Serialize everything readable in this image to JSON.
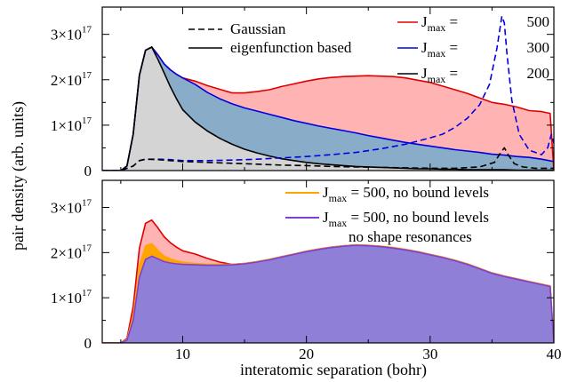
{
  "chart_data": [
    {
      "type": "area",
      "panel": "top",
      "xlabel": "interatomic separation (bohr)",
      "ylabel": "pair density (arb. units)",
      "xlim": [
        3.5,
        40
      ],
      "ylim": [
        0,
        3.6e+17
      ],
      "x_ticks": [
        10,
        20,
        30,
        40
      ],
      "y_ticks": [
        {
          "value": 0,
          "mantissa": "0",
          "exp": ""
        },
        {
          "value": 1e+17,
          "mantissa": "1×10",
          "exp": "17"
        },
        {
          "value": 2e+17,
          "mantissa": "2×10",
          "exp": "17"
        },
        {
          "value": 3e+17,
          "mantissa": "3×10",
          "exp": "17"
        }
      ],
      "legend_left": [
        {
          "label": "Gaussian",
          "style": "dashed",
          "color": "#000000"
        },
        {
          "label": "eigenfunction based",
          "style": "solid",
          "color": "#000000"
        }
      ],
      "legend_right": [
        {
          "sym": "J",
          "sub": "max",
          "eq": " = ",
          "num": "500",
          "color": "#e00000"
        },
        {
          "sym": "J",
          "sub": "max",
          "eq": " = ",
          "num": "300",
          "color": "#0000e0"
        },
        {
          "sym": "J",
          "sub": "max",
          "eq": " = ",
          "num": "200",
          "color": "#000000"
        }
      ],
      "series": [
        {
          "name": "J_max = 500",
          "line_color": "#e00000",
          "fill_color": "#ffb3b3",
          "style": "solid",
          "x": [
            3.5,
            5.0,
            5.5,
            6.0,
            6.5,
            7.0,
            7.5,
            8.0,
            8.5,
            9.0,
            9.5,
            10.0,
            11.0,
            12.0,
            13.0,
            14.0,
            15.0,
            16.0,
            17.0,
            18.0,
            19.0,
            20.0,
            21.0,
            22.0,
            23.0,
            24.0,
            25.0,
            26.0,
            27.0,
            28.0,
            29.0,
            30.0,
            31.0,
            32.0,
            33.0,
            34.0,
            35.0,
            36.0,
            37.0,
            38.0,
            39.0,
            39.7,
            40.0
          ],
          "y": [
            0,
            0,
            1e+16,
            8e+16,
            2.1e+17,
            2.65e+17,
            2.72e+17,
            2.55e+17,
            2.35e+17,
            2.22e+17,
            2.12e+17,
            2.04e+17,
            1.97e+17,
            1.87e+17,
            1.79e+17,
            1.71e+17,
            1.71e+17,
            1.74e+17,
            1.78e+17,
            1.85e+17,
            1.91e+17,
            1.97e+17,
            2.02e+17,
            2.05e+17,
            2.07e+17,
            2.08e+17,
            2.09e+17,
            2.08e+17,
            2.07e+17,
            2.04e+17,
            1.99e+17,
            1.94e+17,
            1.86e+17,
            1.78e+17,
            1.7e+17,
            1.6e+17,
            1.5e+17,
            1.46e+17,
            1.4e+17,
            1.32e+17,
            1.3e+17,
            1.26e+17,
            0
          ]
        },
        {
          "name": "J_max = 300",
          "line_color": "#0000e0",
          "fill_color": "#89adc8",
          "style": "solid",
          "x": [
            3.5,
            5.0,
            5.5,
            6.0,
            6.5,
            7.0,
            7.5,
            8.0,
            8.5,
            9.0,
            9.5,
            10.0,
            11.0,
            12.0,
            13.0,
            14.0,
            15.0,
            16.0,
            17.0,
            18.0,
            19.0,
            20.0,
            21.0,
            22.0,
            23.0,
            24.0,
            25.0,
            26.0,
            27.0,
            28.0,
            29.0,
            30.0,
            31.0,
            32.0,
            33.0,
            34.0,
            35.0,
            36.0,
            37.0,
            38.0,
            39.0,
            40.0
          ],
          "y": [
            0,
            0,
            1e+16,
            8e+16,
            2.1e+17,
            2.65e+17,
            2.72e+17,
            2.55e+17,
            2.35e+17,
            2.22e+17,
            2.12e+17,
            2.04e+17,
            1.9e+17,
            1.72e+17,
            1.58e+17,
            1.47e+17,
            1.38e+17,
            1.31e+17,
            1.24e+17,
            1.17e+17,
            1.1e+17,
            1.04e+17,
            9.8e+16,
            9.3e+16,
            8.8e+16,
            8.3e+16,
            7.7e+16,
            7.2e+16,
            6.7e+16,
            6.2e+16,
            5.8e+16,
            5.4e+16,
            5e+16,
            4.6e+16,
            4.3e+16,
            4e+16,
            3.6e+16,
            3.4e+16,
            3.1e+16,
            2.9e+16,
            2.5e+16,
            2e+16
          ]
        },
        {
          "name": "J_max = 200",
          "line_color": "#000000",
          "fill_color": "#d4d4d4",
          "style": "solid",
          "x": [
            3.5,
            5.0,
            5.5,
            6.0,
            6.5,
            7.0,
            7.5,
            8.0,
            8.5,
            9.0,
            9.5,
            10.0,
            11.0,
            12.0,
            13.0,
            14.0,
            15.0,
            16.0,
            17.0,
            18.0,
            19.0,
            20.0,
            21.0,
            22.0,
            23.0,
            24.0,
            25.0,
            26.0,
            27.0,
            28.0,
            29.0,
            30.0,
            31.0,
            32.0,
            33.0,
            34.0,
            35.0,
            36.0,
            37.0,
            38.0,
            39.0,
            40.0
          ],
          "y": [
            0,
            0,
            1e+16,
            8e+16,
            2.1e+17,
            2.65e+17,
            2.72e+17,
            2.45e+17,
            2.15e+17,
            1.85e+17,
            1.58e+17,
            1.34e+17,
            1.07e+17,
            8.7e+16,
            7.1e+16,
            5.8e+16,
            4.7e+16,
            3.9e+16,
            3.2e+16,
            2.6e+16,
            2.2e+16,
            1.8e+16,
            1.5e+16,
            1.3e+16,
            1.1e+16,
            9000000000000000.0,
            8000000000000000.0,
            7000000000000000.0,
            6000000000000000.0,
            5000000000000000.0,
            4000000000000000.0,
            4000000000000000.0,
            3000000000000000.0,
            3000000000000000.0,
            2000000000000000.0,
            2000000000000000.0,
            2000000000000000.0,
            2000000000000000.0,
            1000000000000000.0,
            1000000000000000.0,
            1000000000000000.0,
            1000000000000000.0
          ]
        },
        {
          "name": "J_max = 500 Gaussian",
          "line_color": "#0000e0",
          "fill_color": "none",
          "style": "dashed",
          "x": [
            3.5,
            5.0,
            6.0,
            6.5,
            7.0,
            8.0,
            9.0,
            10.0,
            12.0,
            14.0,
            16.0,
            18.0,
            20.0,
            22.0,
            24.0,
            26.0,
            28.0,
            30.0,
            31.0,
            32.0,
            33.0,
            34.0,
            34.8,
            35.4,
            35.8,
            36.0,
            36.2,
            36.6,
            37.2,
            38.0,
            39.0,
            39.5,
            39.8,
            40.0
          ],
          "y": [
            0,
            0,
            1e+16,
            2.2e+16,
            2.5e+16,
            2.5e+16,
            2.4e+16,
            2.2e+16,
            2.2e+16,
            2.3e+16,
            2.5e+16,
            2.8e+16,
            3.1e+16,
            3.5e+16,
            4e+16,
            4.8e+16,
            5.8e+16,
            7.2e+16,
            8e+16,
            9.5e+16,
            1.15e+17,
            1.45e+17,
            1.9e+17,
            2.7e+17,
            3.4e+17,
            3.25e+17,
            2.6e+17,
            1.55e+17,
            8e+16,
            4.5e+16,
            3.5e+16,
            5e+16,
            8e+16,
            6e+16
          ]
        },
        {
          "name": "J_max = 200 Gaussian",
          "line_color": "#000000",
          "fill_color": "none",
          "style": "dashed",
          "x": [
            3.5,
            5.0,
            6.0,
            6.5,
            7.0,
            8.0,
            9.0,
            10.0,
            12.0,
            14.0,
            16.0,
            18.0,
            20.0,
            22.0,
            24.0,
            26.0,
            28.0,
            30.0,
            32.0,
            34.0,
            35.2,
            35.7,
            36.0,
            36.3,
            36.8,
            37.5,
            38.5,
            40.0
          ],
          "y": [
            0,
            0,
            1e+16,
            2.2e+16,
            2.5e+16,
            2.4e+16,
            2.2e+16,
            2e+16,
            1.8e+16,
            1.6e+16,
            1.4e+16,
            1.2e+16,
            1.1e+16,
            9000000000000000.0,
            8000000000000000.0,
            7000000000000000.0,
            6000000000000000.0,
            5000000000000000.0,
            5000000000000000.0,
            8000000000000000.0,
            1.8e+16,
            4e+16,
            5e+16,
            3.5e+16,
            1.5e+16,
            8000000000000000.0,
            5000000000000000.0,
            5000000000000000.0
          ]
        }
      ]
    },
    {
      "type": "area",
      "panel": "bottom",
      "xlabel": "interatomic separation (bohr)",
      "ylabel": "pair density (arb. units)",
      "xlim": [
        3.5,
        40
      ],
      "ylim": [
        0,
        3.6e+17
      ],
      "x_ticks": [
        10,
        20,
        30,
        40
      ],
      "y_ticks": [
        {
          "value": 0,
          "mantissa": "0",
          "exp": ""
        },
        {
          "value": 1e+17,
          "mantissa": "1×10",
          "exp": "17"
        },
        {
          "value": 2e+17,
          "mantissa": "2×10",
          "exp": "17"
        },
        {
          "value": 3e+17,
          "mantissa": "3×10",
          "exp": "17"
        }
      ],
      "legend": [
        {
          "sym": "J",
          "sub": "max",
          "rest": " = 500, no bound levels",
          "rest2": "",
          "color": "#ffa500"
        },
        {
          "sym": "J",
          "sub": "max",
          "rest": " = 500, no bound levels",
          "rest2": "no shape resonances",
          "color": "#7e3fd2"
        }
      ],
      "series": [
        {
          "name": "J_max = 500",
          "line_color": "#e00000",
          "fill_color": "#ffb3b3",
          "style": "solid",
          "x": [
            3.5,
            5.0,
            5.5,
            6.0,
            6.5,
            7.0,
            7.5,
            8.0,
            8.5,
            9.0,
            9.5,
            10.0,
            11.0,
            12.0,
            13.0,
            14.0,
            15.0,
            16.0,
            17.0,
            18.0,
            19.0,
            20.0,
            21.0,
            22.0,
            23.0,
            24.0,
            25.0,
            26.0,
            27.0,
            28.0,
            29.0,
            30.0,
            31.0,
            32.0,
            33.0,
            34.0,
            35.0,
            36.0,
            37.0,
            38.0,
            39.0,
            39.7,
            40.0
          ],
          "y": [
            0,
            0,
            1e+16,
            8e+16,
            2.1e+17,
            2.65e+17,
            2.72e+17,
            2.55e+17,
            2.35e+17,
            2.22e+17,
            2.12e+17,
            2.04e+17,
            1.97e+17,
            1.87e+17,
            1.79e+17,
            1.74e+17,
            1.76e+17,
            1.8e+17,
            1.85e+17,
            1.91e+17,
            1.97e+17,
            2.03e+17,
            2.08e+17,
            2.12e+17,
            2.15e+17,
            2.17e+17,
            2.16e+17,
            2.14e+17,
            2.11e+17,
            2.07e+17,
            2.02e+17,
            1.96e+17,
            1.9e+17,
            1.83e+17,
            1.75e+17,
            1.65e+17,
            1.55e+17,
            1.48e+17,
            1.42e+17,
            1.36e+17,
            1.3e+17,
            1.26e+17,
            0
          ]
        },
        {
          "name": "J_max = 500, no bound levels",
          "line_color": "#ffa500",
          "fill_color": "#ffa500",
          "style": "solid",
          "x": [
            3.5,
            5.0,
            5.5,
            6.0,
            6.5,
            7.0,
            7.5,
            8.0,
            8.5,
            9.0,
            9.5,
            10.0,
            11.0,
            12.0,
            13.0,
            14.0,
            15.0,
            16.0,
            17.0,
            18.0,
            19.0,
            20.0,
            21.0,
            22.0,
            23.0,
            24.0,
            25.0,
            26.0,
            27.0,
            28.0,
            29.0,
            30.0,
            31.0,
            32.0,
            33.0,
            34.0,
            35.0,
            36.0,
            37.0,
            38.0,
            39.0,
            39.7,
            40.0
          ],
          "y": [
            0,
            0,
            8000000000000000.0,
            6e+16,
            1.7e+17,
            2.15e+17,
            2.2e+17,
            2.05e+17,
            1.92e+17,
            1.86e+17,
            1.82e+17,
            1.79e+17,
            1.76e+17,
            1.74e+17,
            1.74e+17,
            1.74e+17,
            1.76e+17,
            1.8e+17,
            1.85e+17,
            1.91e+17,
            1.97e+17,
            2.03e+17,
            2.08e+17,
            2.12e+17,
            2.15e+17,
            2.17e+17,
            2.16e+17,
            2.14e+17,
            2.11e+17,
            2.07e+17,
            2.02e+17,
            1.96e+17,
            1.9e+17,
            1.83e+17,
            1.75e+17,
            1.65e+17,
            1.55e+17,
            1.48e+17,
            1.42e+17,
            1.36e+17,
            1.3e+17,
            1.26e+17,
            0
          ]
        },
        {
          "name": "J_max = 500, no bound levels no shape resonances",
          "line_color": "#7e3fd2",
          "fill_color": "#8f7fd6",
          "style": "solid",
          "x": [
            3.5,
            5.0,
            5.5,
            6.0,
            6.5,
            7.0,
            7.5,
            8.0,
            8.5,
            9.0,
            9.5,
            10.0,
            11.0,
            12.0,
            13.0,
            14.0,
            15.0,
            16.0,
            17.0,
            18.0,
            19.0,
            20.0,
            21.0,
            22.0,
            23.0,
            24.0,
            25.0,
            26.0,
            27.0,
            28.0,
            29.0,
            30.0,
            31.0,
            32.0,
            33.0,
            34.0,
            35.0,
            36.0,
            37.0,
            38.0,
            39.0,
            39.7,
            40.0
          ],
          "y": [
            0,
            0,
            6000000000000000.0,
            5e+16,
            1.45e+17,
            1.85e+17,
            1.92e+17,
            1.86e+17,
            1.8e+17,
            1.77e+17,
            1.75e+17,
            1.74e+17,
            1.73e+17,
            1.72e+17,
            1.72e+17,
            1.73e+17,
            1.75e+17,
            1.79e+17,
            1.84e+17,
            1.9e+17,
            1.96e+17,
            2.02e+17,
            2.07e+17,
            2.11e+17,
            2.14e+17,
            2.16e+17,
            2.15e+17,
            2.13e+17,
            2.1e+17,
            2.06e+17,
            2.01e+17,
            1.95e+17,
            1.89e+17,
            1.82e+17,
            1.74e+17,
            1.64e+17,
            1.54e+17,
            1.47e+17,
            1.41e+17,
            1.35e+17,
            1.29e+17,
            1.25e+17,
            0
          ]
        }
      ]
    }
  ]
}
